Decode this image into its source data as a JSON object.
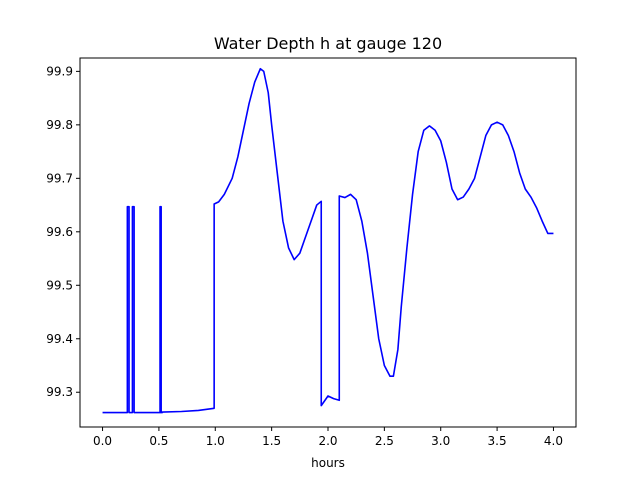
{
  "chart_data": {
    "type": "line",
    "title": "Water Depth h at gauge 120",
    "xlabel": "hours",
    "ylabel": "",
    "xlim": [
      -0.2,
      4.2
    ],
    "ylim": [
      99.235,
      99.925
    ],
    "xticks": [
      0.0,
      0.5,
      1.0,
      1.5,
      2.0,
      2.5,
      3.0,
      3.5,
      4.0
    ],
    "xtick_labels": [
      "0.0",
      "0.5",
      "1.0",
      "1.5",
      "2.0",
      "2.5",
      "3.0",
      "3.5",
      "4.0"
    ],
    "yticks": [
      99.3,
      99.4,
      99.5,
      99.6,
      99.7,
      99.8,
      99.9
    ],
    "ytick_labels": [
      "99.3",
      "99.4",
      "99.5",
      "99.6",
      "99.7",
      "99.8",
      "99.9"
    ],
    "grid": false,
    "series": [
      {
        "color": "#0000ff",
        "x": [
          0.0,
          0.22,
          0.22,
          0.235,
          0.235,
          0.265,
          0.265,
          0.28,
          0.28,
          0.51,
          0.51,
          0.52,
          0.52,
          0.53,
          0.53,
          0.7,
          0.85,
          0.99,
          0.99,
          1.03,
          1.08,
          1.15,
          1.2,
          1.25,
          1.3,
          1.35,
          1.4,
          1.43,
          1.47,
          1.5,
          1.55,
          1.6,
          1.65,
          1.7,
          1.75,
          1.8,
          1.85,
          1.9,
          1.94,
          1.94,
          2.0,
          2.05,
          2.1,
          2.1,
          2.15,
          2.2,
          2.25,
          2.3,
          2.35,
          2.4,
          2.45,
          2.5,
          2.55,
          2.58,
          2.62,
          2.65,
          2.7,
          2.75,
          2.8,
          2.85,
          2.9,
          2.95,
          3.0,
          3.05,
          3.1,
          3.15,
          3.2,
          3.25,
          3.3,
          3.35,
          3.4,
          3.45,
          3.5,
          3.55,
          3.6,
          3.65,
          3.7,
          3.75,
          3.8,
          3.85,
          3.9,
          3.95,
          4.0
        ],
        "y": [
          99.262,
          99.262,
          99.647,
          99.647,
          99.262,
          99.262,
          99.647,
          99.647,
          99.262,
          99.262,
          99.647,
          99.647,
          99.262,
          99.262,
          99.263,
          99.264,
          99.266,
          99.27,
          99.652,
          99.656,
          99.67,
          99.7,
          99.74,
          99.79,
          99.84,
          99.88,
          99.905,
          99.9,
          99.86,
          99.8,
          99.71,
          99.62,
          99.57,
          99.548,
          99.56,
          99.59,
          99.62,
          99.65,
          99.657,
          99.275,
          99.293,
          99.288,
          99.285,
          99.667,
          99.664,
          99.67,
          99.66,
          99.62,
          99.56,
          99.48,
          99.4,
          99.35,
          99.33,
          99.33,
          99.38,
          99.46,
          99.57,
          99.67,
          99.75,
          99.79,
          99.798,
          99.79,
          99.77,
          99.73,
          99.68,
          99.66,
          99.665,
          99.68,
          99.7,
          99.74,
          99.78,
          99.8,
          99.805,
          99.8,
          99.78,
          99.75,
          99.71,
          99.68,
          99.665,
          99.645,
          99.62,
          99.597,
          99.597
        ]
      }
    ]
  }
}
